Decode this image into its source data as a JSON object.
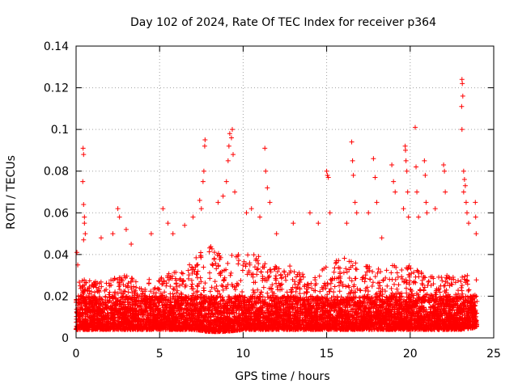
{
  "chart_data": {
    "type": "scatter",
    "title": "Day 102 of 2024, Rate Of TEC Index for receiver p364",
    "xlabel": "GPS time / hours",
    "ylabel": "ROTI / TECUs",
    "xlim": [
      0,
      25
    ],
    "ylim": [
      0,
      0.14
    ],
    "xticks": [
      0,
      5,
      10,
      15,
      20,
      25
    ],
    "yticks": [
      0,
      0.02,
      0.04,
      0.06,
      0.08,
      0.1,
      0.12,
      0.14
    ],
    "xtick_labels": [
      "0",
      "5",
      "10",
      "15",
      "20",
      "25"
    ],
    "ytick_labels": [
      "0",
      "0.02",
      "0.04",
      "0.06",
      "0.08",
      "0.1",
      "0.12",
      "0.14"
    ],
    "grid": true,
    "marker": "+",
    "colors": {
      "points": "#ff0000",
      "grid": "#a0a0a0",
      "axes": "#000000"
    },
    "series": [
      {
        "name": "ROTI",
        "band_profile": {
          "x": [
            0,
            1,
            2,
            3,
            4,
            5,
            6,
            7,
            8,
            9,
            10,
            11,
            12,
            13,
            14,
            15,
            16,
            17,
            18,
            19,
            20,
            21,
            22,
            23,
            24
          ],
          "y_min": [
            0.004,
            0.004,
            0.004,
            0.004,
            0.004,
            0.004,
            0.004,
            0.004,
            0.003,
            0.003,
            0.004,
            0.004,
            0.004,
            0.004,
            0.004,
            0.004,
            0.004,
            0.004,
            0.004,
            0.004,
            0.004,
            0.004,
            0.004,
            0.004,
            0.005
          ],
          "y_dense_top": [
            0.03,
            0.027,
            0.028,
            0.03,
            0.028,
            0.03,
            0.032,
            0.038,
            0.045,
            0.04,
            0.04,
            0.04,
            0.035,
            0.035,
            0.03,
            0.035,
            0.04,
            0.035,
            0.035,
            0.035,
            0.035,
            0.03,
            0.03,
            0.03,
            0.03
          ]
        },
        "points": [
          {
            "x": 0.05,
            "y": 0.041
          },
          {
            "x": 0.1,
            "y": 0.035
          },
          {
            "x": 0.42,
            "y": 0.091
          },
          {
            "x": 0.45,
            "y": 0.088
          },
          {
            "x": 0.4,
            "y": 0.075
          },
          {
            "x": 0.45,
            "y": 0.064
          },
          {
            "x": 0.5,
            "y": 0.058
          },
          {
            "x": 0.5,
            "y": 0.055
          },
          {
            "x": 0.55,
            "y": 0.05
          },
          {
            "x": 0.45,
            "y": 0.047
          },
          {
            "x": 1.5,
            "y": 0.048
          },
          {
            "x": 2.2,
            "y": 0.05
          },
          {
            "x": 2.5,
            "y": 0.062
          },
          {
            "x": 2.6,
            "y": 0.058
          },
          {
            "x": 3.0,
            "y": 0.052
          },
          {
            "x": 3.3,
            "y": 0.045
          },
          {
            "x": 4.5,
            "y": 0.05
          },
          {
            "x": 5.2,
            "y": 0.062
          },
          {
            "x": 5.5,
            "y": 0.055
          },
          {
            "x": 5.8,
            "y": 0.05
          },
          {
            "x": 6.5,
            "y": 0.054
          },
          {
            "x": 7.0,
            "y": 0.058
          },
          {
            "x": 7.4,
            "y": 0.066
          },
          {
            "x": 7.5,
            "y": 0.062
          },
          {
            "x": 7.6,
            "y": 0.075
          },
          {
            "x": 7.65,
            "y": 0.08
          },
          {
            "x": 7.7,
            "y": 0.092
          },
          {
            "x": 7.72,
            "y": 0.095
          },
          {
            "x": 8.5,
            "y": 0.065
          },
          {
            "x": 8.8,
            "y": 0.068
          },
          {
            "x": 9.0,
            "y": 0.075
          },
          {
            "x": 9.1,
            "y": 0.085
          },
          {
            "x": 9.15,
            "y": 0.092
          },
          {
            "x": 9.2,
            "y": 0.098
          },
          {
            "x": 9.3,
            "y": 0.096
          },
          {
            "x": 9.35,
            "y": 0.1
          },
          {
            "x": 9.4,
            "y": 0.088
          },
          {
            "x": 9.5,
            "y": 0.07
          },
          {
            "x": 10.2,
            "y": 0.06
          },
          {
            "x": 10.5,
            "y": 0.062
          },
          {
            "x": 11.0,
            "y": 0.058
          },
          {
            "x": 11.3,
            "y": 0.091
          },
          {
            "x": 11.35,
            "y": 0.08
          },
          {
            "x": 11.45,
            "y": 0.072
          },
          {
            "x": 11.6,
            "y": 0.065
          },
          {
            "x": 12.0,
            "y": 0.05
          },
          {
            "x": 13.0,
            "y": 0.055
          },
          {
            "x": 14.0,
            "y": 0.06
          },
          {
            "x": 14.5,
            "y": 0.055
          },
          {
            "x": 15.0,
            "y": 0.08
          },
          {
            "x": 15.05,
            "y": 0.078
          },
          {
            "x": 15.1,
            "y": 0.077
          },
          {
            "x": 15.2,
            "y": 0.06
          },
          {
            "x": 16.2,
            "y": 0.055
          },
          {
            "x": 16.5,
            "y": 0.094
          },
          {
            "x": 16.55,
            "y": 0.085
          },
          {
            "x": 16.6,
            "y": 0.078
          },
          {
            "x": 16.7,
            "y": 0.065
          },
          {
            "x": 16.8,
            "y": 0.06
          },
          {
            "x": 17.5,
            "y": 0.06
          },
          {
            "x": 17.8,
            "y": 0.086
          },
          {
            "x": 17.9,
            "y": 0.077
          },
          {
            "x": 18.0,
            "y": 0.065
          },
          {
            "x": 18.3,
            "y": 0.048
          },
          {
            "x": 18.9,
            "y": 0.083
          },
          {
            "x": 19.0,
            "y": 0.075
          },
          {
            "x": 19.1,
            "y": 0.07
          },
          {
            "x": 19.6,
            "y": 0.062
          },
          {
            "x": 19.7,
            "y": 0.092
          },
          {
            "x": 19.72,
            "y": 0.09
          },
          {
            "x": 19.75,
            "y": 0.085
          },
          {
            "x": 19.8,
            "y": 0.08
          },
          {
            "x": 19.85,
            "y": 0.07
          },
          {
            "x": 19.9,
            "y": 0.058
          },
          {
            "x": 20.3,
            "y": 0.101
          },
          {
            "x": 20.35,
            "y": 0.082
          },
          {
            "x": 20.4,
            "y": 0.07
          },
          {
            "x": 20.5,
            "y": 0.058
          },
          {
            "x": 20.85,
            "y": 0.085
          },
          {
            "x": 20.9,
            "y": 0.078
          },
          {
            "x": 20.95,
            "y": 0.065
          },
          {
            "x": 21.0,
            "y": 0.06
          },
          {
            "x": 21.5,
            "y": 0.062
          },
          {
            "x": 22.0,
            "y": 0.083
          },
          {
            "x": 22.05,
            "y": 0.08
          },
          {
            "x": 22.1,
            "y": 0.07
          },
          {
            "x": 23.1,
            "y": 0.124
          },
          {
            "x": 23.12,
            "y": 0.122
          },
          {
            "x": 23.15,
            "y": 0.116
          },
          {
            "x": 23.08,
            "y": 0.111
          },
          {
            "x": 23.1,
            "y": 0.1
          },
          {
            "x": 23.2,
            "y": 0.08
          },
          {
            "x": 23.25,
            "y": 0.076
          },
          {
            "x": 23.3,
            "y": 0.073
          },
          {
            "x": 23.2,
            "y": 0.07
          },
          {
            "x": 23.35,
            "y": 0.065
          },
          {
            "x": 23.4,
            "y": 0.06
          },
          {
            "x": 23.5,
            "y": 0.055
          },
          {
            "x": 23.9,
            "y": 0.065
          },
          {
            "x": 23.92,
            "y": 0.058
          },
          {
            "x": 23.95,
            "y": 0.05
          }
        ]
      }
    ]
  }
}
